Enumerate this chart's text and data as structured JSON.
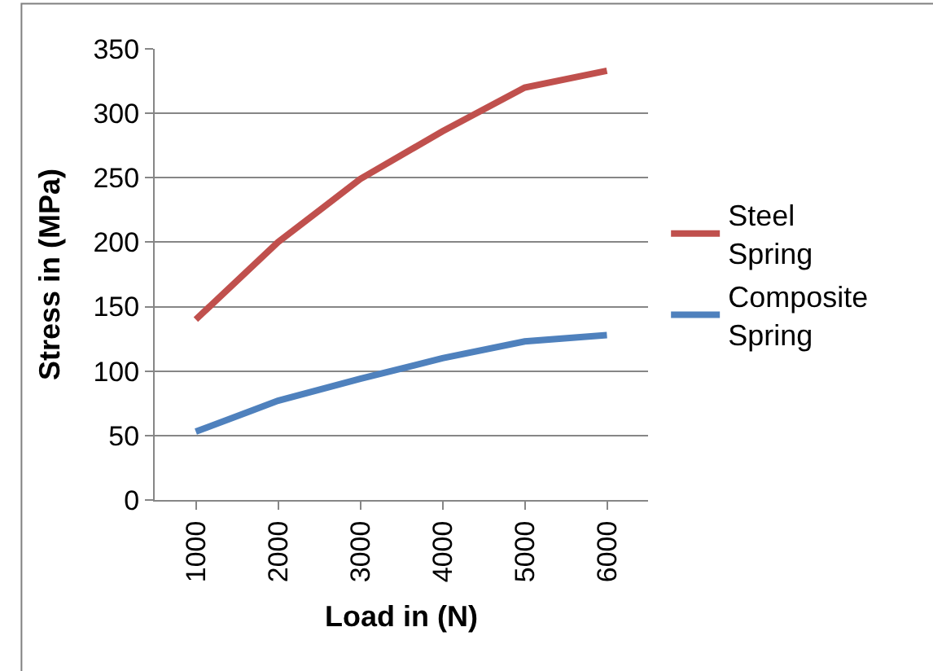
{
  "chart_data": {
    "type": "line",
    "xlabel": "Load in (N)",
    "ylabel": "Stress in (MPa)",
    "categories": [
      "1000",
      "2000",
      "3000",
      "4000",
      "5000",
      "6000"
    ],
    "series": [
      {
        "name": "Steel Spring",
        "color": "#c0504d",
        "values": [
          140,
          200,
          249,
          286,
          320,
          333
        ]
      },
      {
        "name": "Composite Spring",
        "color": "#4f81bd",
        "values": [
          53,
          77,
          94,
          110,
          123,
          128
        ]
      }
    ],
    "ylim": [
      0,
      350
    ],
    "yticks": [
      0,
      50,
      100,
      150,
      200,
      250,
      300,
      350
    ],
    "grid": "y",
    "legend": "right",
    "marker": "none",
    "line_style": "solid"
  }
}
